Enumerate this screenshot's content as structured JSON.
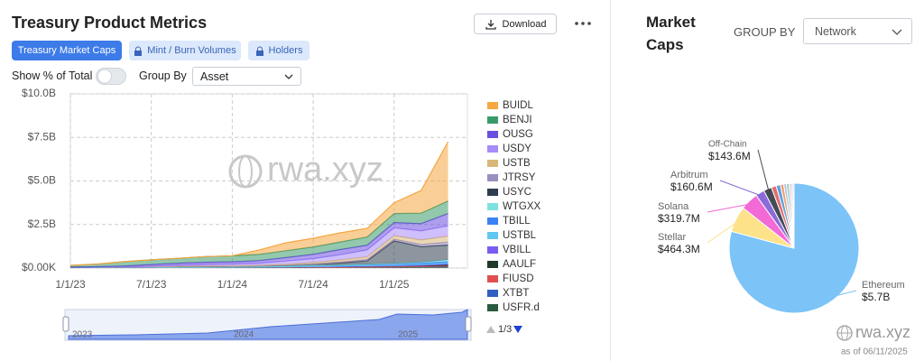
{
  "header": {
    "title": "Treasury Product Metrics",
    "download": "Download"
  },
  "tabs": [
    "Treasury Market Caps",
    "Mint / Burn Volumes",
    "Holders"
  ],
  "controls": {
    "show_pct": "Show % of Total",
    "group_by": "Group By",
    "group_by_value": "Asset"
  },
  "legend_pager": "1/3",
  "navigator_labels": [
    "2023",
    "2024",
    "2025"
  ],
  "watermark": "rwa.xyz",
  "right_panel": {
    "group_by": "GROUP BY",
    "group_by_value": "Network",
    "as_of": "as of 06/11/2025"
  },
  "chart_data": [
    {
      "type": "area",
      "stacked": true,
      "grid": true,
      "categories": [
        "1/1/23",
        null,
        null,
        "7/1/23",
        null,
        null,
        "1/1/24",
        null,
        null,
        "7/1/24",
        null,
        null,
        "1/1/25",
        null,
        null
      ],
      "ylim": [
        0,
        10
      ],
      "yticks": [
        {
          "value": 0,
          "label": "$0.00K"
        },
        {
          "value": 2.5,
          "label": "$2.5B"
        },
        {
          "value": 5,
          "label": "$5.0B"
        },
        {
          "value": 7.5,
          "label": "$7.5B"
        },
        {
          "value": 10,
          "label": "$10.0B"
        }
      ],
      "series": [
        {
          "name": "BUIDL",
          "color": "#f5a742",
          "values": [
            0,
            0,
            0,
            0,
            0,
            0,
            0,
            0.25,
            0.45,
            0.5,
            0.52,
            0.5,
            0.62,
            1.3,
            3.4
          ]
        },
        {
          "name": "BENJI",
          "color": "#3a9a6a",
          "values": [
            0.1,
            0.15,
            0.25,
            0.27,
            0.28,
            0.33,
            0.34,
            0.36,
            0.4,
            0.42,
            0.44,
            0.47,
            0.52,
            0.6,
            0.72
          ]
        },
        {
          "name": "OUSG",
          "color": "#6b4fe0",
          "values": [
            0,
            0.02,
            0.05,
            0.1,
            0.12,
            0.13,
            0.13,
            0.15,
            0.2,
            0.25,
            0.3,
            0.27,
            0.3,
            0.42,
            0.7
          ]
        },
        {
          "name": "USDY",
          "color": "#a78bfa",
          "values": [
            0,
            0,
            0,
            0.02,
            0.05,
            0.08,
            0.1,
            0.12,
            0.18,
            0.22,
            0.3,
            0.4,
            0.45,
            0.52,
            0.6
          ]
        },
        {
          "name": "USTB",
          "color": "#d9b779",
          "values": [
            0,
            0,
            0,
            0,
            0.01,
            0.02,
            0.02,
            0.03,
            0.05,
            0.08,
            0.12,
            0.15,
            0.2,
            0.26,
            0.35
          ]
        },
        {
          "name": "JTRSY",
          "color": "#9b8fc0",
          "values": [
            0,
            0,
            0,
            0,
            0,
            0,
            0,
            0,
            0,
            0,
            0.05,
            0.08,
            0.1,
            0.12,
            0.16
          ]
        },
        {
          "name": "USYC",
          "color": "#2f3e4e",
          "values": [
            0,
            0.01,
            0.02,
            0.03,
            0.05,
            0.05,
            0.05,
            0.05,
            0.06,
            0.1,
            0.12,
            0.2,
            1.3,
            0.9,
            0.85
          ]
        },
        {
          "name": "WTGXX",
          "color": "#7fe0e0",
          "values": [
            0,
            0,
            0,
            0,
            0,
            0,
            0,
            0,
            0,
            0,
            0,
            0,
            0.02,
            0.05,
            0.1
          ]
        },
        {
          "name": "TBILL",
          "color": "#3b82f6",
          "values": [
            0,
            0,
            0,
            0,
            0,
            0,
            0.01,
            0.02,
            0.03,
            0.04,
            0.05,
            0.06,
            0.07,
            0.07,
            0.08
          ]
        },
        {
          "name": "USTBL",
          "color": "#60c8f0",
          "values": [
            0,
            0,
            0,
            0,
            0,
            0,
            0,
            0,
            0.01,
            0.02,
            0.03,
            0.04,
            0.05,
            0.05,
            0.06
          ]
        },
        {
          "name": "VBILL",
          "color": "#7c5cf0",
          "values": [
            0,
            0,
            0,
            0,
            0,
            0,
            0,
            0,
            0,
            0,
            0,
            0,
            0,
            0,
            0.05
          ]
        },
        {
          "name": "AAULF",
          "color": "#1f3a2a",
          "values": [
            0,
            0,
            0,
            0,
            0,
            0,
            0,
            0.01,
            0.02,
            0.03,
            0.04,
            0.05,
            0.05,
            0.06,
            0.06
          ]
        },
        {
          "name": "FIUSD",
          "color": "#e05050",
          "values": [
            0,
            0,
            0,
            0,
            0,
            0,
            0,
            0,
            0,
            0,
            0,
            0,
            0,
            0.01,
            0.02
          ]
        },
        {
          "name": "XTBT",
          "color": "#3060c0",
          "values": [
            0,
            0,
            0,
            0,
            0,
            0,
            0,
            0,
            0,
            0,
            0,
            0.01,
            0.02,
            0.03,
            0.04
          ]
        },
        {
          "name": "USFR.d",
          "color": "#2a5a40",
          "values": [
            0.05,
            0.05,
            0.05,
            0.05,
            0.05,
            0.05,
            0.05,
            0.05,
            0.05,
            0.05,
            0.05,
            0.05,
            0.05,
            0.06,
            0.06
          ]
        }
      ]
    },
    {
      "type": "pie",
      "title": "Market Caps",
      "categories": [
        "Ethereum",
        "Stellar",
        "Solana",
        "Arbitrum",
        "Off-Chain",
        null,
        null,
        null,
        null,
        null,
        null,
        null,
        null
      ],
      "values": [
        5700,
        464.3,
        319.7,
        160.6,
        143.6,
        90,
        75,
        60,
        50,
        45,
        40,
        30,
        20
      ],
      "value_labels": [
        "$5.7B",
        "$464.3M",
        "$319.7M",
        "$160.6M",
        "$143.6M",
        null,
        null,
        null,
        null,
        null,
        null,
        null,
        null
      ],
      "colors": [
        "#7cc4f8",
        "#fde28a",
        "#f36ad6",
        "#8b6bd9",
        "#444b55",
        "#e07070",
        "#5aa0e0",
        "#f0a070",
        "#c0c0e0",
        "#80d0c0",
        "#f9c0d0",
        "#a0d0f0",
        "#d0a0f0"
      ]
    }
  ]
}
